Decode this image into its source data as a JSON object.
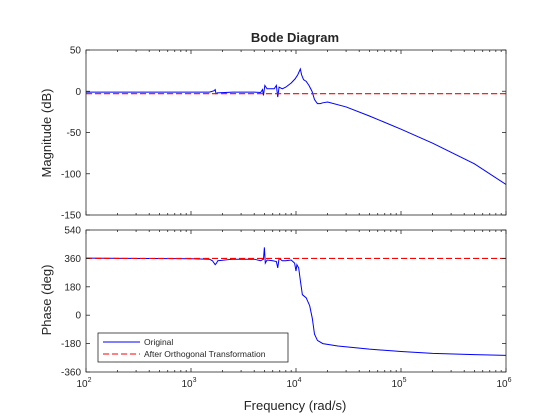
{
  "chart_data": {
    "type": "line",
    "title": "Bode Diagram",
    "xlabel": "Frequency  (rad/s)",
    "xscale": "log",
    "xlim": [
      100,
      1000000
    ],
    "x_ticks": [
      {
        "base": "10",
        "exp": "2"
      },
      {
        "base": "10",
        "exp": "3"
      },
      {
        "base": "10",
        "exp": "4"
      },
      {
        "base": "10",
        "exp": "5"
      },
      {
        "base": "10",
        "exp": "6"
      }
    ],
    "legend": {
      "location": "bottom-left",
      "entries": [
        {
          "label": "Original",
          "color": "#0000ff",
          "style": "solid"
        },
        {
          "label": "After Orthogonal Transformation",
          "color": "#ff0000",
          "style": "dashed"
        }
      ]
    },
    "panels": [
      {
        "ylabel": "Magnitude (dB)",
        "ylim": [
          -150,
          50
        ],
        "yticks": [
          -150,
          -100,
          -50,
          0,
          50
        ],
        "series": [
          {
            "color": "#0000ff",
            "style": "solid",
            "points": [
              [
                100,
                -1
              ],
              [
                1000,
                -1
              ],
              [
                1500,
                -1
              ],
              [
                1650,
                0.5
              ],
              [
                1700,
                2
              ],
              [
                1730,
                -3
              ],
              [
                1780,
                -2
              ],
              [
                2500,
                -1
              ],
              [
                4000,
                -1
              ],
              [
                4600,
                -1.5
              ],
              [
                4800,
                2
              ],
              [
                4900,
                -5
              ],
              [
                5050,
                7
              ],
              [
                5300,
                3
              ],
              [
                6200,
                3
              ],
              [
                6500,
                7
              ],
              [
                6700,
                -7
              ],
              [
                6900,
                5
              ],
              [
                7400,
                3
              ],
              [
                8000,
                5
              ],
              [
                9000,
                10
              ],
              [
                9800,
                15
              ],
              [
                10400,
                20
              ],
              [
                11000,
                27
              ],
              [
                11300,
                20
              ],
              [
                11800,
                14
              ],
              [
                12500,
                12
              ],
              [
                13300,
                7
              ],
              [
                14200,
                0
              ],
              [
                15000,
                -10
              ],
              [
                16000,
                -15
              ],
              [
                17000,
                -15
              ],
              [
                18000,
                -14
              ],
              [
                20000,
                -13
              ],
              [
                30000,
                -19
              ],
              [
                50000,
                -30
              ],
              [
                100000,
                -46
              ],
              [
                200000,
                -63
              ],
              [
                500000,
                -88
              ],
              [
                1000000,
                -113
              ]
            ]
          },
          {
            "color": "#ff0000",
            "style": "dashed",
            "points": [
              [
                100,
                -3
              ],
              [
                1000000,
                -3
              ]
            ]
          }
        ]
      },
      {
        "ylabel": "Phase (deg)",
        "ylim": [
          -360,
          540
        ],
        "yticks": [
          -360,
          -180,
          0,
          180,
          360,
          540
        ],
        "series": [
          {
            "color": "#0000ff",
            "style": "solid",
            "points": [
              [
                100,
                362
              ],
              [
                1000,
                358
              ],
              [
                1500,
                355
              ],
              [
                1600,
                345
              ],
              [
                1700,
                320
              ],
              [
                1750,
                330
              ],
              [
                1800,
                345
              ],
              [
                2500,
                355
              ],
              [
                4000,
                355
              ],
              [
                4600,
                345
              ],
              [
                4900,
                355
              ],
              [
                5000,
                430
              ],
              [
                5100,
                330
              ],
              [
                5300,
                350
              ],
              [
                6000,
                345
              ],
              [
                6500,
                340
              ],
              [
                6700,
                300
              ],
              [
                6900,
                360
              ],
              [
                7400,
                345
              ],
              [
                8000,
                345
              ],
              [
                9000,
                350
              ],
              [
                9700,
                330
              ],
              [
                10000,
                280
              ],
              [
                10200,
                320
              ],
              [
                10600,
                300
              ],
              [
                11000,
                220
              ],
              [
                11500,
                130
              ],
              [
                12500,
                110
              ],
              [
                13500,
                60
              ],
              [
                14300,
                -20
              ],
              [
                15000,
                -120
              ],
              [
                16000,
                -160
              ],
              [
                18000,
                -180
              ],
              [
                25000,
                -195
              ],
              [
                50000,
                -215
              ],
              [
                100000,
                -230
              ],
              [
                200000,
                -242
              ],
              [
                500000,
                -250
              ],
              [
                1000000,
                -255
              ]
            ]
          },
          {
            "color": "#ff0000",
            "style": "dashed",
            "points": [
              [
                100,
                360
              ],
              [
                1000000,
                360
              ]
            ]
          }
        ]
      }
    ]
  }
}
